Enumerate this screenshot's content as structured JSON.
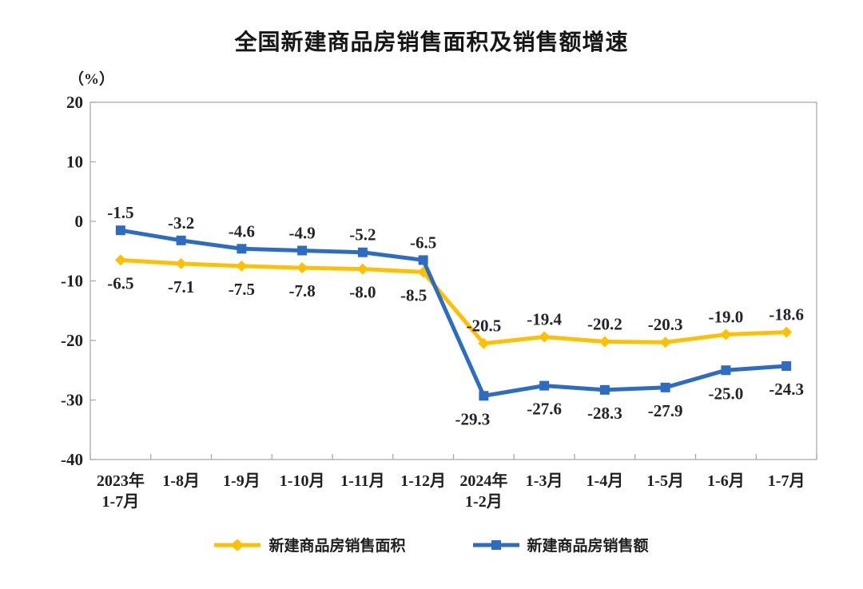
{
  "chart_data": {
    "type": "line",
    "title": "全国新建商品房销售面积及销售额增速",
    "unit_label": "（%）",
    "ylim": [
      -40,
      20
    ],
    "yticks": [
      20,
      10,
      0,
      -10,
      -20,
      -30,
      -40
    ],
    "grid": false,
    "legend_position": "bottom",
    "axis_color": "#ABABAB",
    "categories": [
      [
        "2023年",
        "1-7月"
      ],
      [
        "1-8月"
      ],
      [
        "1-9月"
      ],
      [
        "1-10月"
      ],
      [
        "1-11月"
      ],
      [
        "1-12月"
      ],
      [
        "2024年",
        "1-2月"
      ],
      [
        "1-3月"
      ],
      [
        "1-4月"
      ],
      [
        "1-5月"
      ],
      [
        "1-6月"
      ],
      [
        "1-7月"
      ]
    ],
    "series": [
      {
        "name": "新建商品房销售面积",
        "color": "#FFC000",
        "marker": "diamond",
        "values": [
          -6.5,
          -7.1,
          -7.5,
          -7.8,
          -8.0,
          -8.5,
          -20.5,
          -19.4,
          -20.2,
          -20.3,
          -19.0,
          -18.6
        ]
      },
      {
        "name": "新建商品房销售额",
        "color": "#2D6CC3",
        "marker": "square",
        "values": [
          -1.5,
          -3.2,
          -4.6,
          -4.9,
          -5.2,
          -6.5,
          -29.3,
          -27.6,
          -28.3,
          -27.9,
          -25.0,
          -24.3
        ]
      }
    ]
  }
}
